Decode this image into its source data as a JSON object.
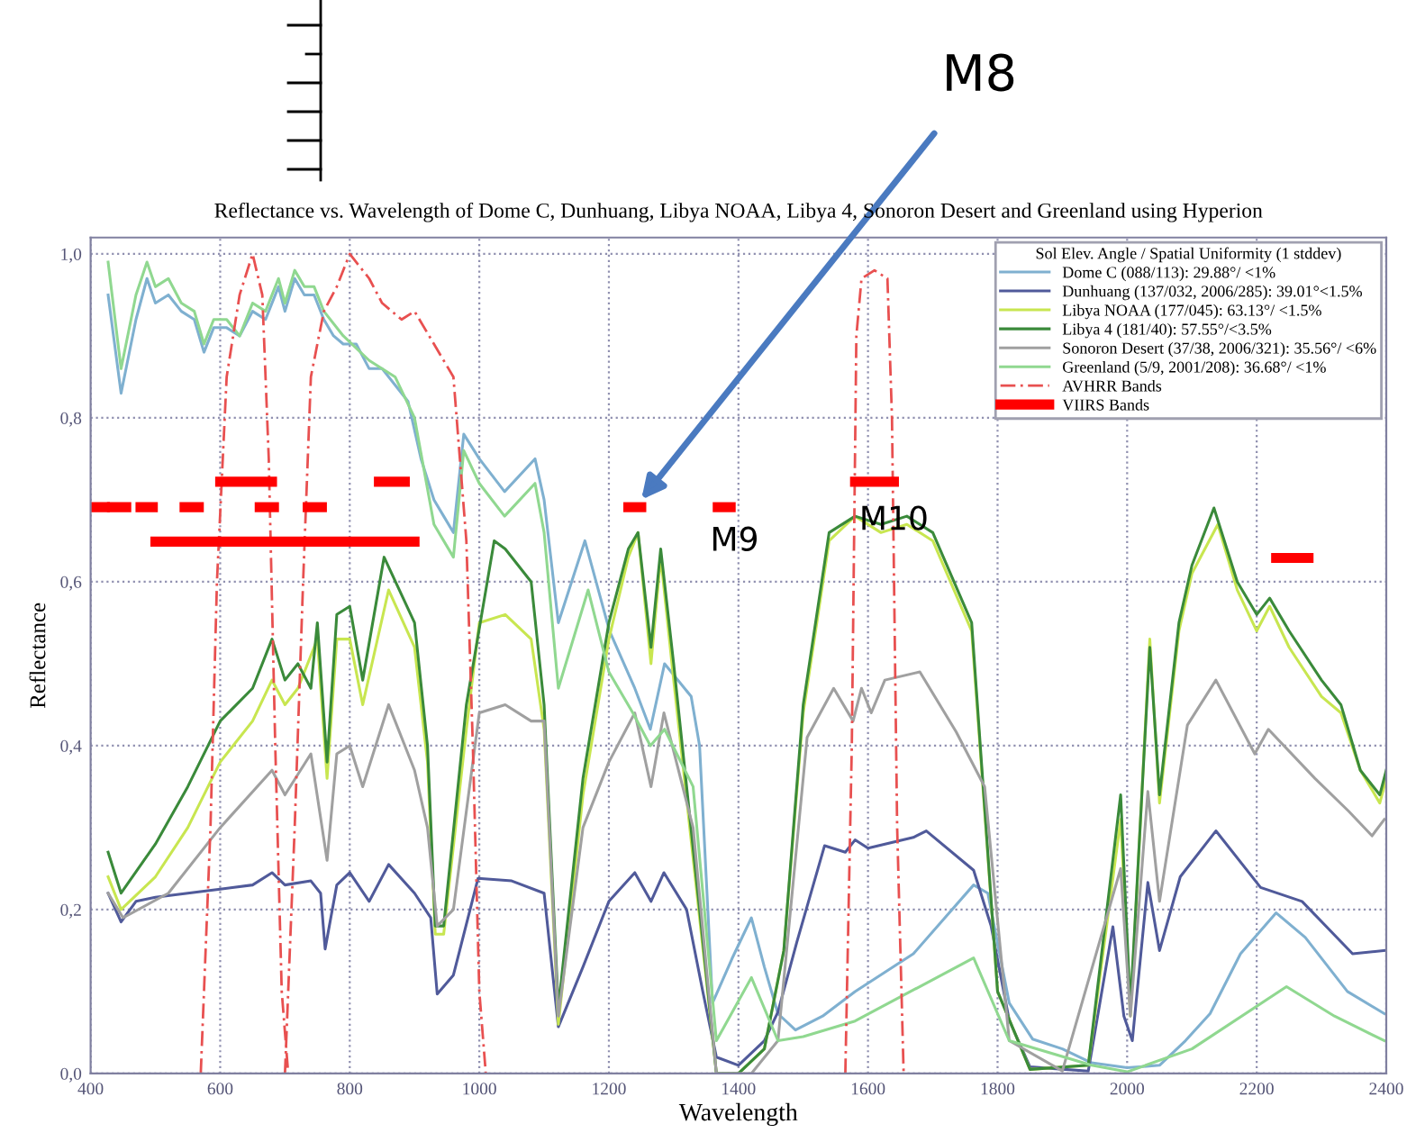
{
  "chart_data": {
    "type": "line",
    "title": "Reflectance vs. Wavelength of Dome C, Dunhuang, Libya NOAA, Libya 4, Sonoron Desert and Greenland using Hyperion",
    "xlabel": "Wavelength",
    "ylabel": "Reflectance",
    "legend_title": "Sol Elev. Angle / Spatial Uniformity (1 stddev)",
    "xlim": [
      400,
      2400
    ],
    "xticks": [
      400,
      600,
      800,
      1000,
      1200,
      1400,
      1600,
      1800,
      2000,
      2200,
      2400
    ],
    "ylim": [
      0,
      1.02
    ],
    "yticks": [
      {
        "value": 0,
        "label": "0,0"
      },
      {
        "value": 0.2,
        "label": "0,2"
      },
      {
        "value": 0.4,
        "label": "0,4"
      },
      {
        "value": 0.6,
        "label": "0,6"
      },
      {
        "value": 0.8,
        "label": "0,8"
      },
      {
        "value": 1.0,
        "label": "1,0"
      }
    ],
    "grid": true,
    "legend": "top right",
    "marker": "none",
    "series": [
      {
        "name": "Dome C (088/113): 29.88°/ <1%",
        "color": "#7fb0d0",
        "x": [
          427,
          447,
          470,
          487,
          500,
          520,
          540,
          560,
          575,
          590,
          610,
          630,
          650,
          670,
          690,
          700,
          715,
          730,
          745,
          760,
          775,
          790,
          810,
          830,
          850,
          870,
          890,
          910,
          930,
          945,
          960,
          976,
          1000,
          1039,
          1086,
          1100,
          1122,
          1163,
          1201,
          1240,
          1264,
          1286,
          1327,
          1340,
          1360,
          1390,
          1420,
          1440,
          1461,
          1488,
          1530,
          1580,
          1670,
          1763,
          1785,
          1818,
          1854,
          1900,
          1945,
          2000,
          2050,
          2090,
          2128,
          2175,
          2230,
          2275,
          2340,
          2397
        ],
        "values": [
          0.95,
          0.83,
          0.92,
          0.97,
          0.94,
          0.95,
          0.93,
          0.92,
          0.88,
          0.91,
          0.91,
          0.9,
          0.93,
          0.92,
          0.96,
          0.93,
          0.97,
          0.95,
          0.95,
          0.92,
          0.9,
          0.89,
          0.89,
          0.86,
          0.86,
          0.84,
          0.82,
          0.75,
          0.7,
          0.68,
          0.66,
          0.78,
          0.75,
          0.71,
          0.75,
          0.7,
          0.55,
          0.65,
          0.54,
          0.47,
          0.42,
          0.5,
          0.46,
          0.4,
          0.086,
          0.14,
          0.19,
          0.13,
          0.073,
          0.053,
          0.07,
          0.1,
          0.146,
          0.23,
          0.22,
          0.086,
          0.042,
          0.03,
          0.013,
          0.007,
          0.01,
          0.04,
          0.073,
          0.146,
          0.196,
          0.166,
          0.1,
          0.073
        ]
      },
      {
        "name": "Dunhuang (137/032, 2006/285): 39.01°<1.5%",
        "color": "#505a9a",
        "x": [
          427,
          447,
          470,
          500,
          550,
          600,
          650,
          680,
          700,
          740,
          755,
          762,
          780,
          800,
          830,
          860,
          900,
          925,
          935,
          960,
          998,
          1050,
          1100,
          1122,
          1160,
          1200,
          1240,
          1265,
          1285,
          1320,
          1345,
          1366,
          1400,
          1440,
          1461,
          1490,
          1533,
          1565,
          1580,
          1600,
          1670,
          1690,
          1763,
          1790,
          1818,
          1850,
          1940,
          1978,
          1995,
          2008,
          2032,
          2050,
          2082,
          2137,
          2206,
          2270,
          2348,
          2397
        ],
        "values": [
          0.22,
          0.185,
          0.21,
          0.215,
          0.22,
          0.225,
          0.23,
          0.245,
          0.23,
          0.235,
          0.22,
          0.152,
          0.23,
          0.245,
          0.21,
          0.255,
          0.22,
          0.19,
          0.097,
          0.12,
          0.238,
          0.235,
          0.22,
          0.057,
          0.13,
          0.21,
          0.245,
          0.21,
          0.245,
          0.2,
          0.1,
          0.02,
          0.01,
          0.04,
          0.075,
          0.16,
          0.278,
          0.27,
          0.285,
          0.275,
          0.288,
          0.296,
          0.248,
          0.18,
          0.065,
          0.008,
          0.003,
          0.179,
          0.07,
          0.04,
          0.233,
          0.15,
          0.24,
          0.296,
          0.227,
          0.21,
          0.146,
          0.15
        ]
      },
      {
        "name": "Libya NOAA (177/045): 63.13°/ <1.5%",
        "color": "#c8e650",
        "x": [
          427,
          447,
          500,
          550,
          600,
          650,
          680,
          700,
          720,
          750,
          765,
          780,
          800,
          820,
          860,
          900,
          920,
          932,
          945,
          980,
          1000,
          1040,
          1080,
          1100,
          1122,
          1160,
          1200,
          1230,
          1245,
          1265,
          1280,
          1300,
          1340,
          1366,
          1400,
          1440,
          1470,
          1500,
          1540,
          1580,
          1620,
          1660,
          1700,
          1760,
          1800,
          1850,
          1940,
          1990,
          2005,
          2020,
          2035,
          2050,
          2080,
          2100,
          2140,
          2170,
          2200,
          2220,
          2250,
          2300,
          2330,
          2360,
          2390,
          2400
        ],
        "values": [
          0.24,
          0.2,
          0.24,
          0.3,
          0.38,
          0.43,
          0.48,
          0.45,
          0.47,
          0.53,
          0.36,
          0.53,
          0.53,
          0.45,
          0.59,
          0.52,
          0.38,
          0.17,
          0.17,
          0.42,
          0.55,
          0.56,
          0.53,
          0.42,
          0.06,
          0.34,
          0.53,
          0.63,
          0.66,
          0.5,
          0.63,
          0.48,
          0.19,
          0.0,
          0.0,
          0.03,
          0.15,
          0.44,
          0.65,
          0.68,
          0.66,
          0.67,
          0.65,
          0.54,
          0.1,
          0.005,
          0.01,
          0.31,
          0.07,
          0.3,
          0.53,
          0.33,
          0.54,
          0.61,
          0.67,
          0.59,
          0.54,
          0.57,
          0.52,
          0.46,
          0.44,
          0.37,
          0.33,
          0.36
        ]
      },
      {
        "name": "Libya 4 (181/40): 57.55°/<3.5%",
        "color": "#3a8a3a",
        "x": [
          427,
          447,
          500,
          550,
          600,
          650,
          680,
          700,
          720,
          740,
          750,
          765,
          780,
          800,
          820,
          853,
          900,
          920,
          932,
          945,
          980,
          1023,
          1040,
          1080,
          1100,
          1122,
          1160,
          1200,
          1230,
          1245,
          1265,
          1280,
          1300,
          1340,
          1366,
          1400,
          1440,
          1470,
          1500,
          1540,
          1580,
          1620,
          1660,
          1700,
          1760,
          1800,
          1850,
          1940,
          1990,
          2005,
          2020,
          2035,
          2050,
          2080,
          2100,
          2134,
          2170,
          2200,
          2220,
          2250,
          2300,
          2330,
          2360,
          2390,
          2400
        ],
        "values": [
          0.27,
          0.22,
          0.28,
          0.35,
          0.43,
          0.47,
          0.53,
          0.48,
          0.5,
          0.47,
          0.55,
          0.38,
          0.56,
          0.57,
          0.48,
          0.63,
          0.55,
          0.4,
          0.18,
          0.18,
          0.45,
          0.65,
          0.64,
          0.6,
          0.45,
          0.08,
          0.36,
          0.55,
          0.64,
          0.66,
          0.52,
          0.64,
          0.5,
          0.2,
          0.0,
          0.0,
          0.03,
          0.15,
          0.45,
          0.66,
          0.68,
          0.67,
          0.68,
          0.66,
          0.55,
          0.1,
          0.005,
          0.01,
          0.34,
          0.08,
          0.3,
          0.52,
          0.34,
          0.55,
          0.62,
          0.69,
          0.6,
          0.56,
          0.58,
          0.54,
          0.48,
          0.45,
          0.37,
          0.34,
          0.37
        ]
      },
      {
        "name": "Sonoron Desert (37/38, 2006/321): 35.56°/ <6%",
        "color": "#a0a0a0",
        "x": [
          427,
          450,
          520,
          600,
          680,
          700,
          740,
          765,
          780,
          800,
          820,
          860,
          900,
          920,
          935,
          960,
          1000,
          1040,
          1080,
          1100,
          1122,
          1160,
          1200,
          1240,
          1265,
          1285,
          1330,
          1366,
          1420,
          1461,
          1506,
          1547,
          1577,
          1590,
          1605,
          1626,
          1680,
          1736,
          1780,
          1818,
          1900,
          1990,
          2005,
          2032,
          2050,
          2093,
          2137,
          2197,
          2218,
          2290,
          2342,
          2378,
          2397
        ],
        "values": [
          0.22,
          0.19,
          0.22,
          0.3,
          0.37,
          0.34,
          0.39,
          0.26,
          0.39,
          0.4,
          0.35,
          0.45,
          0.37,
          0.3,
          0.18,
          0.2,
          0.44,
          0.45,
          0.43,
          0.43,
          0.07,
          0.3,
          0.38,
          0.44,
          0.35,
          0.44,
          0.3,
          0.0,
          0.0,
          0.04,
          0.41,
          0.47,
          0.43,
          0.47,
          0.44,
          0.48,
          0.49,
          0.417,
          0.35,
          0.04,
          0.003,
          0.25,
          0.07,
          0.344,
          0.21,
          0.425,
          0.48,
          0.39,
          0.42,
          0.36,
          0.32,
          0.29,
          0.31
        ]
      },
      {
        "name": "Greenland (5/9, 2001/208): 36.68°/ <1%",
        "color": "#90d890",
        "x": [
          427,
          447,
          470,
          487,
          500,
          520,
          540,
          560,
          575,
          590,
          610,
          630,
          650,
          670,
          690,
          700,
          715,
          730,
          745,
          760,
          790,
          830,
          870,
          900,
          930,
          960,
          976,
          1000,
          1039,
          1086,
          1100,
          1122,
          1168,
          1200,
          1237,
          1264,
          1286,
          1330,
          1366,
          1420,
          1461,
          1500,
          1580,
          1763,
          1818,
          1945,
          2000,
          2100,
          2246,
          2320,
          2397
        ],
        "values": [
          0.99,
          0.86,
          0.95,
          0.99,
          0.96,
          0.97,
          0.94,
          0.93,
          0.89,
          0.92,
          0.92,
          0.9,
          0.94,
          0.93,
          0.97,
          0.94,
          0.98,
          0.96,
          0.96,
          0.93,
          0.9,
          0.87,
          0.85,
          0.8,
          0.67,
          0.63,
          0.76,
          0.72,
          0.68,
          0.72,
          0.66,
          0.47,
          0.59,
          0.49,
          0.44,
          0.4,
          0.42,
          0.35,
          0.04,
          0.117,
          0.04,
          0.045,
          0.064,
          0.141,
          0.04,
          0.01,
          0.002,
          0.03,
          0.106,
          0.07,
          0.04
        ]
      },
      {
        "name": "AVHRR Bands",
        "color": "#e85050",
        "line_style": "dashed",
        "x": [
          570,
          585,
          595,
          610,
          630,
          650,
          665,
          675,
          685,
          695,
          705
        ],
        "values": [
          0,
          0.3,
          0.6,
          0.85,
          0.95,
          1.0,
          0.95,
          0.75,
          0.4,
          0.1,
          0
        ]
      },
      {
        "color": "#e85050",
        "line_style": "dashed",
        "x": [
          700,
          715,
          728,
          740,
          760,
          780,
          800,
          830,
          850,
          880,
          900,
          930,
          960,
          980,
          990,
          1000,
          1010
        ],
        "values": [
          0,
          0.3,
          0.6,
          0.85,
          0.93,
          0.96,
          1.0,
          0.97,
          0.94,
          0.92,
          0.93,
          0.89,
          0.85,
          0.65,
          0.4,
          0.1,
          0
        ]
      },
      {
        "color": "#e85050",
        "line_style": "dashed",
        "x": [
          1565,
          1575,
          1582,
          1590,
          1610,
          1630,
          1637,
          1645,
          1655
        ],
        "values": [
          0,
          0.4,
          0.9,
          0.97,
          0.98,
          0.97,
          0.8,
          0.3,
          0
        ]
      },
      {
        "name": "VIIRS Bands",
        "color": "#ff0000",
        "line_style": "solid",
        "x": [
          400,
          422
        ],
        "values": [
          0.691,
          0.691
        ]
      },
      {
        "color": "#ff0000",
        "line_style": "solid",
        "x": [
          433,
          455
        ],
        "values": [
          0.691,
          0.691
        ]
      },
      {
        "color": "#ff0000",
        "line_style": "solid",
        "x": [
          477,
          496
        ],
        "values": [
          0.691,
          0.691
        ]
      },
      {
        "color": "#ff0000",
        "line_style": "solid",
        "x": [
          545,
          567
        ],
        "values": [
          0.691,
          0.691
        ]
      },
      {
        "color": "#ff0000",
        "line_style": "solid",
        "x": [
          661,
          683
        ],
        "values": [
          0.691,
          0.691
        ]
      },
      {
        "color": "#ff0000",
        "line_style": "solid",
        "x": [
          735,
          757
        ],
        "values": [
          0.691,
          0.691
        ]
      },
      {
        "color": "#ff0000",
        "line_style": "solid",
        "x": [
          600,
          680
        ],
        "values": [
          0.722,
          0.722
        ]
      },
      {
        "color": "#ff0000",
        "line_style": "solid",
        "x": [
          845,
          885
        ],
        "values": [
          0.722,
          0.722
        ]
      },
      {
        "color": "#ff0000",
        "line_style": "solid",
        "x": [
          500,
          900
        ],
        "values": [
          0.649,
          0.649
        ]
      },
      {
        "color": "#ff0000",
        "line_style": "solid",
        "x": [
          1230,
          1250
        ],
        "values": [
          0.691,
          0.691
        ]
      },
      {
        "color": "#ff0000",
        "line_style": "solid",
        "x": [
          1368,
          1388
        ],
        "values": [
          0.691,
          0.691
        ]
      },
      {
        "color": "#ff0000",
        "line_style": "solid",
        "x": [
          1580,
          1640
        ],
        "values": [
          0.722,
          0.722
        ]
      },
      {
        "color": "#ff0000",
        "line_style": "solid",
        "x": [
          2230,
          2280
        ],
        "values": [
          0.629,
          0.629
        ]
      }
    ],
    "annotations": [
      {
        "text": "M8",
        "x": 1250,
        "y": 0.7
      },
      "M9",
      "M10"
    ]
  }
}
